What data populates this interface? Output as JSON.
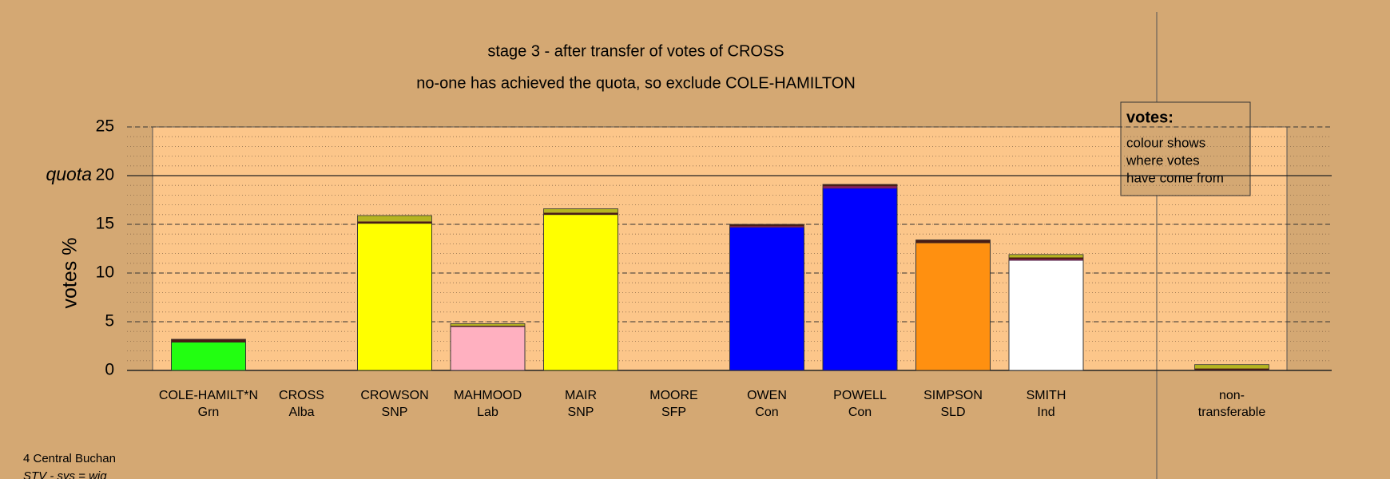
{
  "chart_data": {
    "type": "stacked_bar",
    "title": "stage 3 - after transfer of votes of CROSS",
    "subtitle": "no-one has achieved the quota, so exclude COLE-HAMILTON",
    "y_label": "votes %",
    "categories": [
      [
        "COLE-HAMILT*N",
        "Grn"
      ],
      [
        "CROSS",
        "Alba"
      ],
      [
        "CROWSON",
        "SNP"
      ],
      [
        "MAHMOOD",
        "Lab"
      ],
      [
        "MAIR",
        "SNP"
      ],
      [
        "MOORE",
        "SFP"
      ],
      [
        "OWEN",
        "Con"
      ],
      [
        "POWELL",
        "Con"
      ],
      [
        "SIMPSON",
        "SLD"
      ],
      [
        "SMITH",
        "Ind"
      ],
      [
        "non-",
        "transferable"
      ]
    ],
    "series": [
      {
        "colors": [
          "#22ff11",
          null,
          "#ffff00",
          "#ffb0c0",
          "#ffff00",
          null,
          "#0000ff",
          "#0000ff",
          "#ff9010",
          "#ffffff",
          null
        ],
        "values": [
          2.9,
          0,
          15.1,
          4.5,
          16.0,
          0,
          14.7,
          18.7,
          13.1,
          11.3,
          0
        ]
      },
      {
        "color": "#8b1a6b",
        "values": [
          0,
          0,
          0,
          0,
          0,
          0,
          0.1,
          0.2,
          0,
          0.1,
          0
        ]
      },
      {
        "color": "#4a1c14",
        "values": [
          0.3,
          0,
          0.2,
          0.1,
          0.2,
          0,
          0.2,
          0.2,
          0.3,
          0.2,
          0.2
        ]
      },
      {
        "color": "#b5b520",
        "values": [
          0,
          0,
          0.6,
          0.2,
          0.4,
          0,
          0,
          0,
          0,
          0.3,
          0.4
        ]
      }
    ],
    "ylim": [
      0,
      25
    ],
    "yticks": [
      0,
      5,
      10,
      15,
      20,
      25
    ],
    "minor_grid_step": 1,
    "quota": {
      "value": 20,
      "label": "quota"
    },
    "legend": {
      "title": "votes:",
      "lines": [
        "colour shows",
        "where votes",
        "have come from"
      ]
    },
    "footer": [
      "4 Central Buchan",
      "STV - sys = wig"
    ]
  }
}
